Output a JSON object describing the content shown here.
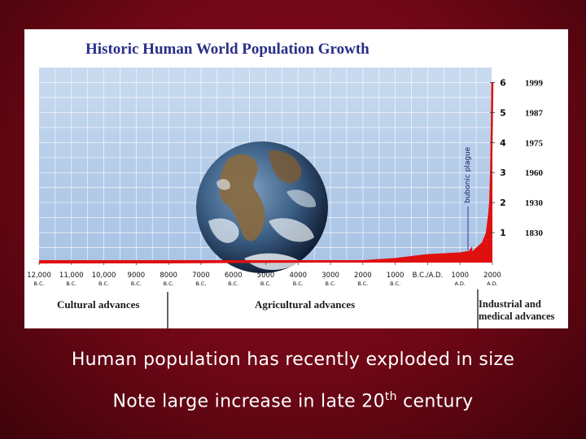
{
  "chart_data": {
    "type": "area",
    "title": "Historic Human World Population Growth",
    "series_color": "#e01010",
    "x": [
      -12000,
      -10000,
      -8000,
      -6000,
      -4000,
      -2000,
      -1000,
      0,
      500,
      1000,
      1300,
      1347,
      1352,
      1400,
      1600,
      1700,
      1800,
      1830,
      1900,
      1930,
      1960,
      1975,
      1987,
      1999
    ],
    "values": [
      0.004,
      0.005,
      0.006,
      0.02,
      0.03,
      0.05,
      0.12,
      0.25,
      0.28,
      0.31,
      0.36,
      0.44,
      0.33,
      0.35,
      0.55,
      0.65,
      0.9,
      1,
      1.6,
      2,
      3,
      4,
      5,
      6
    ],
    "xlim": [
      -12000,
      2000
    ],
    "ylim": [
      0,
      6.5
    ],
    "x_ticks": [
      {
        "value": -12000,
        "label": "12,000",
        "era": "B.C."
      },
      {
        "value": -11000,
        "label": "11,000",
        "era": "B.C."
      },
      {
        "value": -10000,
        "label": "10,000",
        "era": "B.C."
      },
      {
        "value": -9000,
        "label": "9000",
        "era": "B.C."
      },
      {
        "value": -8000,
        "label": "8000",
        "era": "B.C."
      },
      {
        "value": -7000,
        "label": "7000",
        "era": "B.C."
      },
      {
        "value": -6000,
        "label": "6000",
        "era": "B.C."
      },
      {
        "value": -5000,
        "label": "5000",
        "era": "B.C."
      },
      {
        "value": -4000,
        "label": "4000",
        "era": "B.C."
      },
      {
        "value": -3000,
        "label": "3000",
        "era": "B.C."
      },
      {
        "value": -2000,
        "label": "2000",
        "era": "B.C."
      },
      {
        "value": -1000,
        "label": "1000",
        "era": "B.C."
      },
      {
        "value": 0,
        "label": "B.C./A.D.",
        "era": ""
      },
      {
        "value": 1000,
        "label": "1000",
        "era": "A.D."
      },
      {
        "value": 2000,
        "label": "2000",
        "era": "A.D."
      }
    ],
    "y_ticks": [
      {
        "value": 1,
        "label": "1",
        "year": "1830"
      },
      {
        "value": 2,
        "label": "2",
        "year": "1930"
      },
      {
        "value": 3,
        "label": "3",
        "year": "1960"
      },
      {
        "value": 4,
        "label": "4",
        "year": "1975"
      },
      {
        "value": 5,
        "label": "5",
        "year": "1987"
      },
      {
        "value": 6,
        "label": "6",
        "year": "1999"
      }
    ],
    "grid": true,
    "annotations": [
      {
        "text": "bubonic plague",
        "x": 1350
      }
    ],
    "eras": [
      {
        "label": "Cultural advances",
        "start": -12000,
        "end": -8000
      },
      {
        "label": "Agricultural advances",
        "start": -8000,
        "end": 1750
      },
      {
        "label": "Industrial and",
        "label2": "medical advances",
        "start": 1750,
        "end": 2000
      }
    ]
  },
  "captions": {
    "line1": "Human population has recently exploded in size",
    "line2_before": "Note large increase in late 20",
    "line2_sup": "th",
    "line2_after": " century"
  }
}
